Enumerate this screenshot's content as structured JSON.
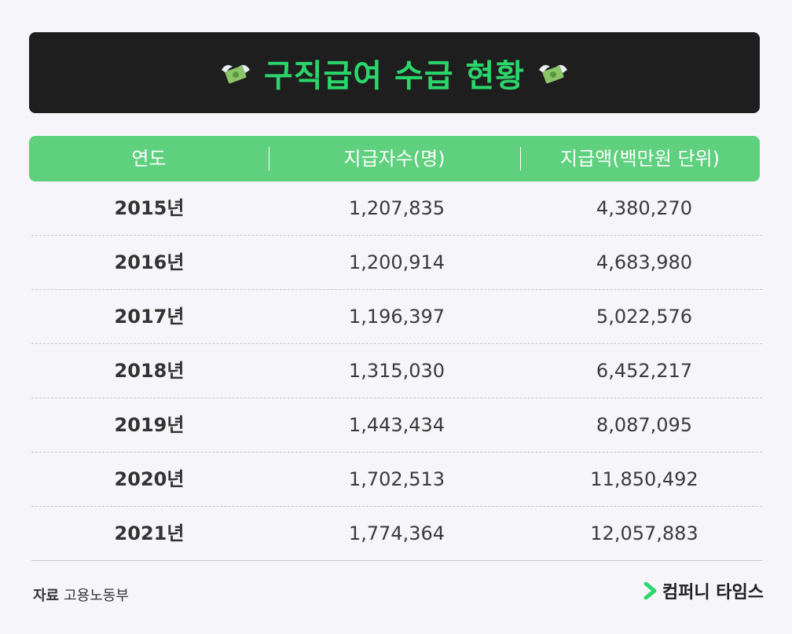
{
  "title": {
    "text": "구직급여 수급 현황",
    "left_icon": "money-with-wings-icon",
    "right_icon": "money-with-wings-icon",
    "accent_color": "#2bd66b",
    "banner_color": "#1e1e1e"
  },
  "table": {
    "header_color": "#5fd07e",
    "headers": [
      "연도",
      "지급자수(명)",
      "지급액(백만원 단위)"
    ],
    "rows": [
      {
        "year": "2015년",
        "count": "1,207,835",
        "amount": "4,380,270"
      },
      {
        "year": "2016년",
        "count": "1,200,914",
        "amount": "4,683,980"
      },
      {
        "year": "2017년",
        "count": "1,196,397",
        "amount": "5,022,576"
      },
      {
        "year": "2018년",
        "count": "1,315,030",
        "amount": "6,452,217"
      },
      {
        "year": "2019년",
        "count": "1,443,434",
        "amount": "8,087,095"
      },
      {
        "year": "2020년",
        "count": "1,702,513",
        "amount": "11,850,492"
      },
      {
        "year": "2021년",
        "count": "1,774,364",
        "amount": "12,057,883"
      }
    ]
  },
  "footer": {
    "source_label": "자료",
    "source_value": "고용노동부",
    "brand_name": "컴퍼니 타임스",
    "brand_icon": "chevron-right-icon",
    "brand_icon_color": "#2bd66b"
  }
}
